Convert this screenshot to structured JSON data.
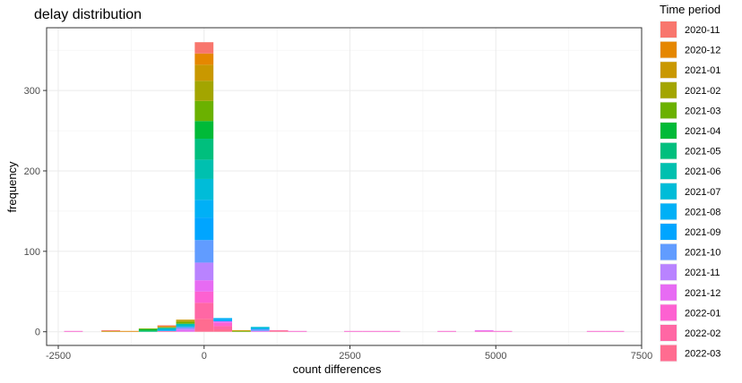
{
  "chart_data": {
    "type": "bar",
    "stacked": true,
    "title": "delay distribution",
    "xlabel": "count differences",
    "ylabel": "frequency",
    "xlim": [
      -2700,
      7500
    ],
    "ylim": [
      -17,
      378
    ],
    "xticks": [
      -2500,
      0,
      2500,
      5000,
      7500
    ],
    "xtick_labels": [
      "-2500",
      "0",
      "2500",
      "5000",
      "7500"
    ],
    "yticks": [
      0,
      100,
      200,
      300
    ],
    "ytick_labels": [
      "0",
      "100",
      "200",
      "300"
    ],
    "grid": true,
    "bin_width": 320,
    "legend": {
      "title": "Time period",
      "placement": "right"
    },
    "series": [
      {
        "name": "2020-11",
        "color": "#F8766D"
      },
      {
        "name": "2020-12",
        "color": "#E58700"
      },
      {
        "name": "2021-01",
        "color": "#C99800"
      },
      {
        "name": "2021-02",
        "color": "#A3A500"
      },
      {
        "name": "2021-03",
        "color": "#6BB100"
      },
      {
        "name": "2021-04",
        "color": "#00BA38"
      },
      {
        "name": "2021-05",
        "color": "#00BF7D"
      },
      {
        "name": "2021-06",
        "color": "#00C0AF"
      },
      {
        "name": "2021-07",
        "color": "#00BCD8"
      },
      {
        "name": "2021-08",
        "color": "#00B0F6"
      },
      {
        "name": "2021-09",
        "color": "#00A5FF"
      },
      {
        "name": "2021-10",
        "color": "#619CFF"
      },
      {
        "name": "2021-11",
        "color": "#B983FF"
      },
      {
        "name": "2021-12",
        "color": "#E76BF3"
      },
      {
        "name": "2022-01",
        "color": "#FD61D1"
      },
      {
        "name": "2022-02",
        "color": "#FF67A4"
      },
      {
        "name": "2022-03",
        "color": "#FF6C90"
      }
    ],
    "bins": [
      {
        "x": -2240,
        "counts": {
          "2022-01": 1
        }
      },
      {
        "x": -1600,
        "counts": {
          "2020-11": 1,
          "2021-01": 1
        }
      },
      {
        "x": -1280,
        "counts": {
          "2020-12": 1
        }
      },
      {
        "x": -960,
        "counts": {
          "2021-03": 1,
          "2021-04": 2,
          "2021-05": 1
        }
      },
      {
        "x": -640,
        "counts": {
          "2020-11": 1,
          "2020-12": 1,
          "2021-02": 1,
          "2021-06": 2,
          "2021-08": 2,
          "2022-02": 1
        }
      },
      {
        "x": -320,
        "counts": {
          "2021-01": 1,
          "2021-02": 2,
          "2021-03": 2,
          "2021-06": 2,
          "2021-07": 2,
          "2021-10": 2,
          "2021-11": 2,
          "2021-12": 2
        }
      },
      {
        "x": 0,
        "counts": {
          "2020-11": 14,
          "2020-12": 14,
          "2021-01": 20,
          "2021-02": 25,
          "2021-03": 25,
          "2021-04": 22,
          "2021-05": 26,
          "2021-06": 24,
          "2021-07": 26,
          "2021-08": 22,
          "2021-09": 28,
          "2021-10": 28,
          "2021-11": 22,
          "2021-12": 14,
          "2022-01": 14,
          "2022-02": 20,
          "2022-03": 16
        }
      },
      {
        "x": 320,
        "counts": {
          "2021-08": 2,
          "2021-09": 2,
          "2021-12": 2,
          "2022-01": 4,
          "2022-02": 4,
          "2022-03": 3
        }
      },
      {
        "x": 640,
        "counts": {
          "2021-01": 1,
          "2021-03": 1
        }
      },
      {
        "x": 960,
        "counts": {
          "2021-07": 2,
          "2021-09": 1,
          "2021-10": 2,
          "2021-12": 1
        }
      },
      {
        "x": 1280,
        "counts": {
          "2022-02": 1,
          "2022-03": 1
        }
      },
      {
        "x": 1600,
        "counts": {
          "2022-01": 1
        }
      },
      {
        "x": 2560,
        "counts": {
          "2022-01": 1
        }
      },
      {
        "x": 2880,
        "counts": {
          "2022-01": 1
        }
      },
      {
        "x": 3200,
        "counts": {
          "2022-01": 1
        }
      },
      {
        "x": 4160,
        "counts": {
          "2022-01": 1
        }
      },
      {
        "x": 4800,
        "counts": {
          "2021-12": 1,
          "2022-01": 1
        }
      },
      {
        "x": 5120,
        "counts": {
          "2022-01": 1
        }
      },
      {
        "x": 6720,
        "counts": {
          "2022-01": 1
        }
      },
      {
        "x": 7040,
        "counts": {
          "2022-01": 1
        }
      }
    ]
  }
}
